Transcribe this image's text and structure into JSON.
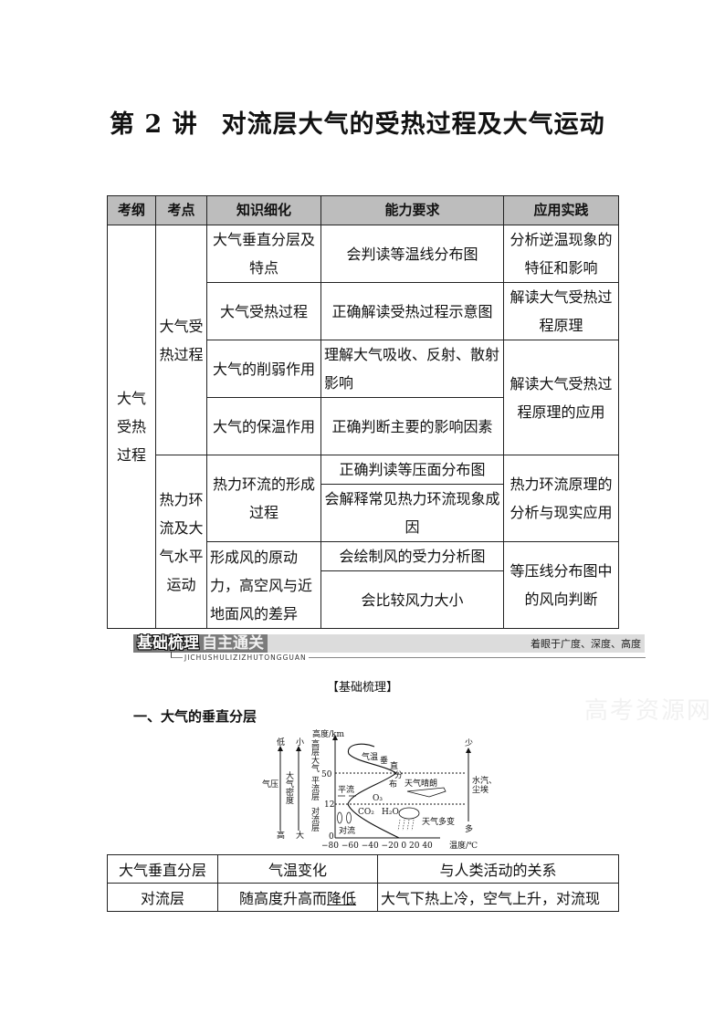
{
  "title": {
    "lecture": "第 2 讲",
    "text": "对流层大气的受热过程及大气运动"
  },
  "main_table": {
    "headers": [
      "考纲",
      "考点",
      "知识细化",
      "能力要求",
      "应用实践"
    ],
    "outline": "大气受热过程",
    "topic1": {
      "name": "大气受热过程",
      "rows": [
        {
          "knowledge": "大气垂直分层及特点",
          "ability": "会判读等温线分布图",
          "practice": "分析逆温现象的特征和影响"
        },
        {
          "knowledge": "大气受热过程",
          "ability": "正确解读受热过程示意图",
          "practice": "解读大气受热过程原理"
        },
        {
          "knowledge": "大气的削弱作用",
          "ability": "理解大气吸收、反射、散射影响",
          "practice": "解读大气受热过程原理的应用"
        },
        {
          "knowledge": "大气的保温作用",
          "ability": "正确判断主要的影响因素"
        }
      ]
    },
    "topic2": {
      "name": "热力环流及大气水平运动",
      "group1": {
        "knowledge": "热力环流的形成过程",
        "abilities": [
          "正确判读等压面分布图",
          "会解释常见热力环流现象成因"
        ],
        "practice": "热力环流原理的分析与现实应用"
      },
      "group2": {
        "knowledge": "形成风的原动力，高空风与近地面风的差异",
        "abilities": [
          "会绘制风的受力分析图",
          "会比较风力大小"
        ],
        "practice": "等压线分布图中的风向判断"
      }
    }
  },
  "banner": {
    "title_bold": "基础梳理",
    "title_light": "自主通关",
    "pinyin": "JICHUSHULIZIZHUTONGGUAN",
    "slogan": "着眼于广度、深度、高度"
  },
  "subhead": "【基础梳理】",
  "section1": "一、大气的垂直分层",
  "watermark": "高考资源网",
  "diagram": {
    "y_axis_label": "高度/km",
    "y_ticks": [
      "50",
      "12",
      "0"
    ],
    "x_ticks": "−80 −60 −40 −20  0  20  40",
    "x_axis_label": "温度/℃",
    "pressure": {
      "label": "气压",
      "top": "低",
      "bottom": "高"
    },
    "density": {
      "label": "大气密度",
      "top": "小",
      "bottom": "大"
    },
    "layers": [
      "高层大气",
      "平流层",
      "对流层"
    ],
    "curve_label": [
      "气温",
      "垂",
      "直",
      "分",
      "布"
    ],
    "labels": {
      "clear": "天气晴朗",
      "o3": "O₃",
      "co2": "CO₂",
      "h2o": "H₂O",
      "changeable": "天气多变",
      "advection": "平流",
      "convection": "对流"
    },
    "vapor": {
      "label1": "水汽、",
      "label2": "尘埃",
      "top": "少",
      "bottom": "多"
    }
  },
  "bottom_table": {
    "headers": [
      "大气垂直分层",
      "气温变化",
      "与人类活动的关系"
    ],
    "rows": [
      {
        "layer": "对流层",
        "temp_prefix": "随高度升高而",
        "temp_blank": "降低",
        "relation": "大气下热上冷，空气上升，对流现"
      }
    ]
  }
}
